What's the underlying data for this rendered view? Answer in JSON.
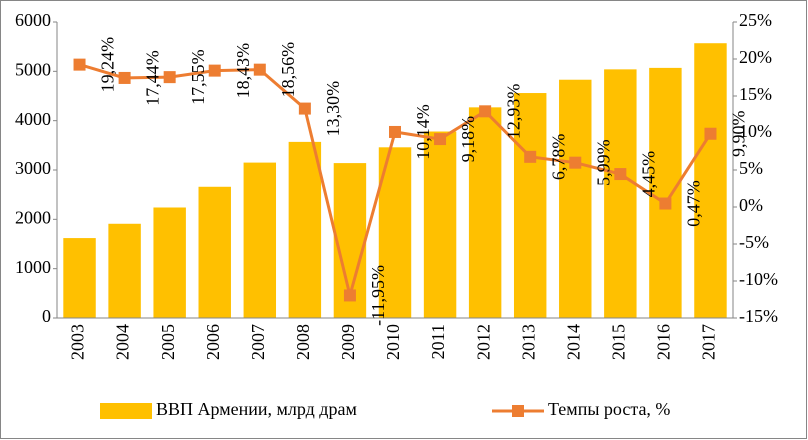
{
  "chart_data": {
    "type": "bar",
    "categories": [
      "2003",
      "2004",
      "2005",
      "2006",
      "2007",
      "2008",
      "2009",
      "2010",
      "2011",
      "2012",
      "2013",
      "2014",
      "2015",
      "2016",
      "2017"
    ],
    "series": [
      {
        "name": "ВВП Армении, млрд драм",
        "color": "#FFC000",
        "type": "bar",
        "values": [
          1620,
          1910,
          2240,
          2660,
          3150,
          3570,
          3140,
          3460,
          3780,
          4270,
          4560,
          4830,
          5040,
          5070,
          5570
        ]
      },
      {
        "name": "Темпы роста, %",
        "color": "#ED7D31",
        "type": "line",
        "axis": "y2",
        "values": [
          19.24,
          17.44,
          17.55,
          18.43,
          18.56,
          13.3,
          -11.95,
          10.14,
          9.18,
          12.93,
          6.78,
          5.99,
          4.45,
          0.47,
          9.9
        ],
        "value_labels": [
          "19,24%",
          "17,44%",
          "17,55%",
          "18,43%",
          "18,56%",
          "13,30%",
          "-11,95%",
          "10,14%",
          "9,18%",
          "12,93%",
          "6,78%",
          "5,99%",
          "4,45%",
          "0,47%",
          "9,90%"
        ]
      }
    ],
    "ylim": [
      0,
      6000
    ],
    "yticks": [
      0,
      1000,
      2000,
      3000,
      4000,
      5000,
      6000
    ],
    "y2lim": [
      -15,
      25
    ],
    "y2ticks": [
      {
        "value": -15,
        "label": "-15%"
      },
      {
        "value": -10,
        "label": "-10%"
      },
      {
        "value": -5,
        "label": "-5%"
      },
      {
        "value": 0,
        "label": "0%"
      },
      {
        "value": 5,
        "label": "5%"
      },
      {
        "value": 10,
        "label": "10%"
      },
      {
        "value": 15,
        "label": "15%"
      },
      {
        "value": 20,
        "label": "20%"
      },
      {
        "value": 25,
        "label": "25%"
      }
    ],
    "grid": false,
    "legend": "bottom"
  }
}
